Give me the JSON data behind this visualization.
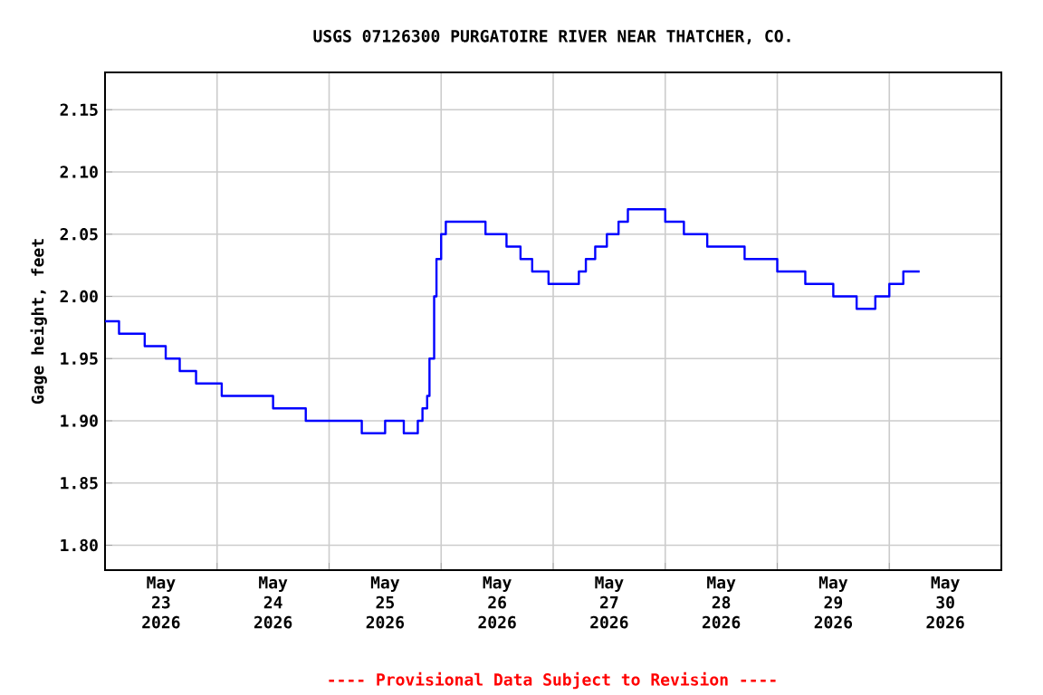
{
  "chart_data": {
    "type": "step",
    "title": "USGS 07126300 PURGATOIRE RIVER NEAR THATCHER, CO.",
    "ylabel": "Gage height, feet",
    "annotations": [
      "---- Provisional Data Subject to Revision ----"
    ],
    "x": [
      "2026-05-23T00:00",
      "2026-05-23T03:00",
      "2026-05-23T08:30",
      "2026-05-23T13:00",
      "2026-05-23T16:00",
      "2026-05-23T19:30",
      "2026-05-24T01:00",
      "2026-05-24T12:00",
      "2026-05-24T19:00",
      "2026-05-25T07:00",
      "2026-05-25T12:00",
      "2026-05-25T16:00",
      "2026-05-25T19:00",
      "2026-05-25T20:00",
      "2026-05-25T21:00",
      "2026-05-25T21:30",
      "2026-05-25T22:30",
      "2026-05-25T23:00",
      "2026-05-26T00:00",
      "2026-05-26T01:00",
      "2026-05-26T09:30",
      "2026-05-26T14:00",
      "2026-05-26T17:00",
      "2026-05-26T19:30",
      "2026-05-26T23:00",
      "2026-05-27T05:30",
      "2026-05-27T07:00",
      "2026-05-27T09:00",
      "2026-05-27T11:30",
      "2026-05-27T14:00",
      "2026-05-27T16:00",
      "2026-05-28T00:00",
      "2026-05-28T04:00",
      "2026-05-28T09:00",
      "2026-05-28T17:00",
      "2026-05-29T00:00",
      "2026-05-29T06:00",
      "2026-05-29T12:00",
      "2026-05-29T17:00",
      "2026-05-29T21:00",
      "2026-05-30T00:00",
      "2026-05-30T03:00",
      "2026-05-30T06:30"
    ],
    "series": [
      {
        "color": "#0000ff",
        "values": [
          1.98,
          1.97,
          1.96,
          1.95,
          1.94,
          1.93,
          1.92,
          1.91,
          1.9,
          1.89,
          1.9,
          1.89,
          1.9,
          1.91,
          1.92,
          1.95,
          2.0,
          2.03,
          2.05,
          2.06,
          2.05,
          2.04,
          2.03,
          2.02,
          2.01,
          2.02,
          2.03,
          2.04,
          2.05,
          2.06,
          2.07,
          2.06,
          2.05,
          2.04,
          2.03,
          2.02,
          2.01,
          2.0,
          1.99,
          2.0,
          2.01,
          2.02,
          2.02
        ]
      }
    ],
    "xlim": [
      "2026-05-23T00:00",
      "2026-05-31T00:00"
    ],
    "xticks": [
      {
        "value": "2026-05-23T12:00",
        "label": "May 23 2026"
      },
      {
        "value": "2026-05-24T12:00",
        "label": "May 24 2026"
      },
      {
        "value": "2026-05-25T12:00",
        "label": "May 25 2026"
      },
      {
        "value": "2026-05-26T12:00",
        "label": "May 26 2026"
      },
      {
        "value": "2026-05-27T12:00",
        "label": "May 27 2026"
      },
      {
        "value": "2026-05-28T12:00",
        "label": "May 28 2026"
      },
      {
        "value": "2026-05-29T12:00",
        "label": "May 29 2026"
      },
      {
        "value": "2026-05-30T12:00",
        "label": "May 30 2026"
      },
      {
        "value": "2026-05-24T00:00",
        "label": null
      },
      {
        "value": "2026-05-25T00:00",
        "label": null
      },
      {
        "value": "2026-05-26T00:00",
        "label": null
      },
      {
        "value": "2026-05-27T00:00",
        "label": null
      },
      {
        "value": "2026-05-28T00:00",
        "label": null
      },
      {
        "value": "2026-05-29T00:00",
        "label": null
      },
      {
        "value": "2026-05-30T00:00",
        "label": null
      }
    ],
    "ylim": [
      1.78,
      2.18
    ],
    "yticks": [
      {
        "value": 1.8,
        "label": "1.80"
      },
      {
        "value": 1.85,
        "label": "1.85"
      },
      {
        "value": 1.9,
        "label": "1.90"
      },
      {
        "value": 1.95,
        "label": "1.95"
      },
      {
        "value": 2.0,
        "label": "2.00"
      },
      {
        "value": 2.05,
        "label": "2.05"
      },
      {
        "value": 2.1,
        "label": "2.10"
      },
      {
        "value": 2.15,
        "label": "2.15"
      }
    ],
    "grid": true
  }
}
